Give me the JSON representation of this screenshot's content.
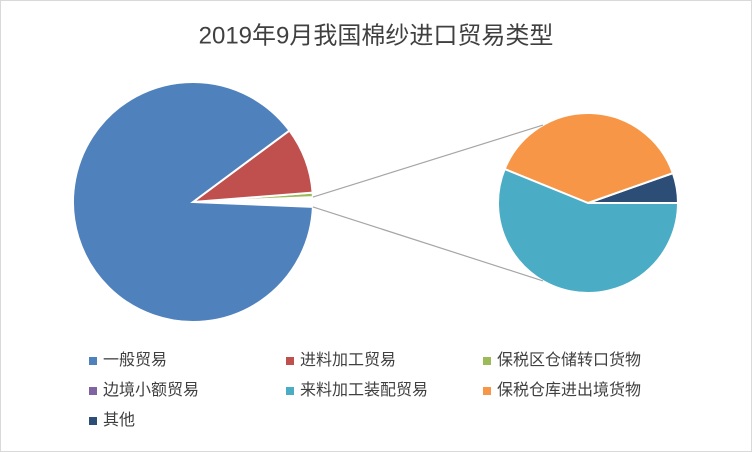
{
  "chart_data": {
    "type": "pie-of-pie",
    "title": "2019年9月我国棉纱进口贸易类型",
    "categories": [
      "一般贸易",
      "进料加工贸易",
      "保税区仓储转口货物",
      "边境小额贸易",
      "来料加工装配贸易",
      "保税仓库进出境货物",
      "其他"
    ],
    "values": [
      89.2,
      8.9,
      0.6,
      0,
      0.73,
      0.5,
      0.07
    ],
    "colors": [
      "#4f81bd",
      "#c0504d",
      "#9bbb59",
      "#8064a2",
      "#4bacc6",
      "#f79646",
      "#2c4d75"
    ],
    "secondary_count": 4
  }
}
